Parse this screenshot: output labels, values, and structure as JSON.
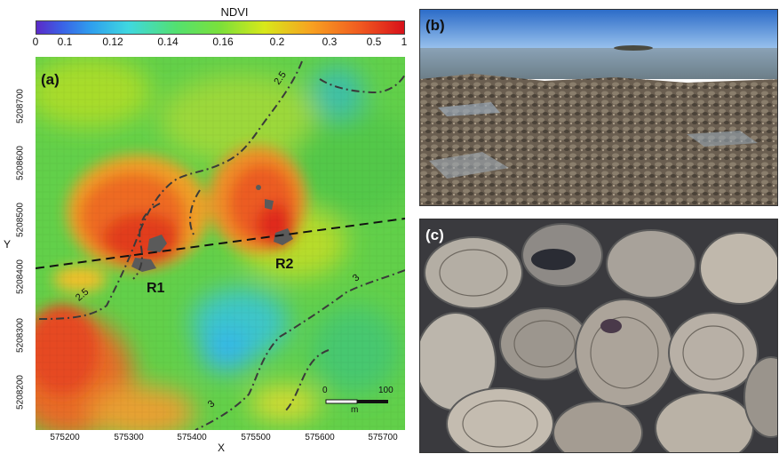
{
  "colorbar": {
    "title": "NDVI",
    "ticks": [
      "0",
      "0.1",
      "0.12",
      "0.14",
      "0.16",
      "0.2",
      "0.3",
      "0.5",
      "1"
    ]
  },
  "panel_a": {
    "label": "(a)",
    "x_axis_label": "X",
    "y_axis_label": "Y",
    "x_ticks": [
      "575200",
      "575300",
      "575400",
      "575500",
      "575600",
      "575700"
    ],
    "y_ticks": [
      "5208700",
      "5208600",
      "5208500",
      "5208400",
      "5208300",
      "5208200"
    ],
    "reef_labels": [
      "R1",
      "R2"
    ],
    "contour_labels": [
      "2.5",
      "2.5",
      "3",
      "3"
    ],
    "scale_bar": {
      "start": "0",
      "end": "100",
      "unit": "m"
    }
  },
  "panel_b": {
    "label": "(b)"
  },
  "panel_c": {
    "label": "(c)"
  }
}
